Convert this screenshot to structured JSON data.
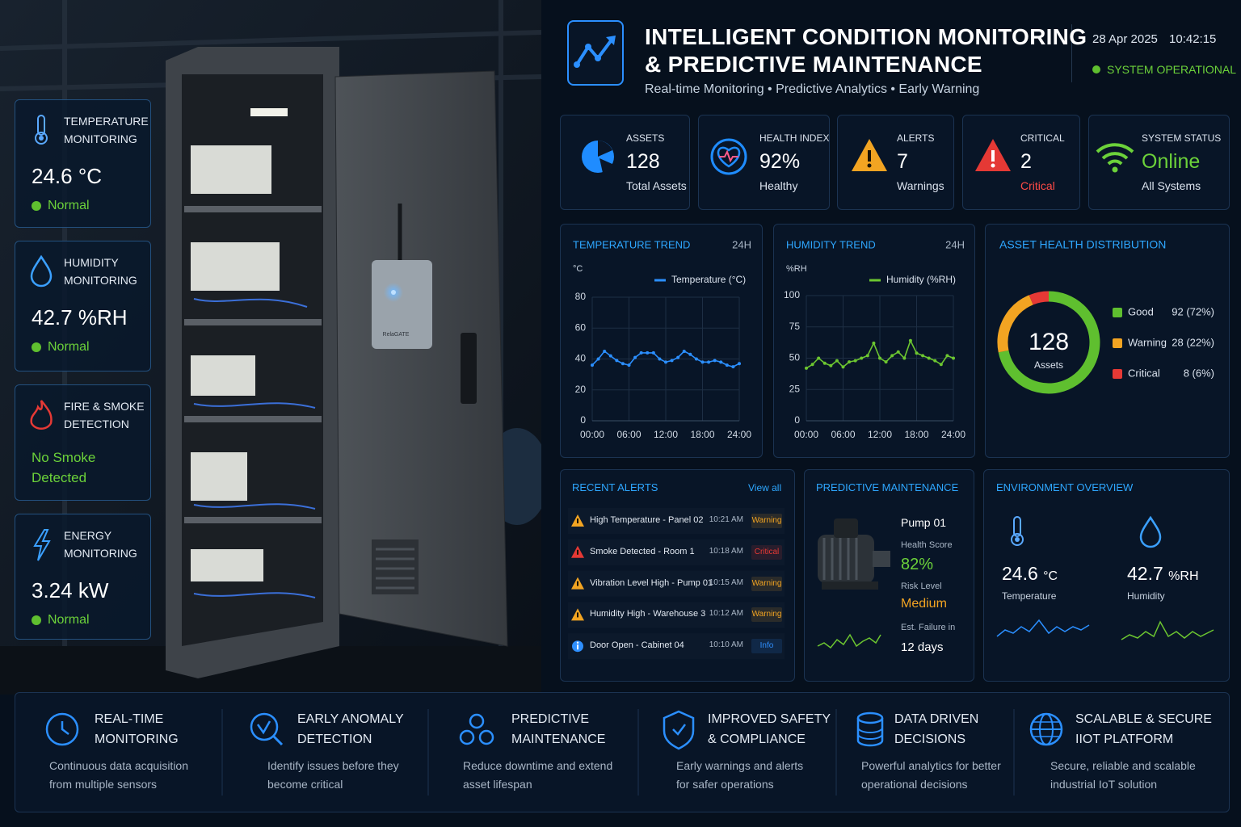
{
  "header": {
    "title_lines": [
      "INTELLIGENT CONDITION MONITORING",
      "& PREDICTIVE MAINTENANCE"
    ],
    "subtitle": "Real-time Monitoring • Predictive Analytics • Early Warning",
    "date": "28 Apr 2025",
    "time": "10:42:15",
    "status": "SYSTEM OPERATIONAL"
  },
  "device": {
    "brand": "RelaGATE"
  },
  "side_cards": [
    {
      "title_lines": [
        "TEMPERATURE",
        "MONITORING"
      ],
      "value": 24.6,
      "unit": "°C",
      "status": "Normal"
    },
    {
      "title_lines": [
        "HUMIDITY",
        "MONITORING"
      ],
      "value": 42.7,
      "unit": "%RH",
      "status": "Normal"
    },
    {
      "title_lines": [
        "FIRE & SMOKE",
        "DETECTION"
      ],
      "status": "No Smoke Detected"
    },
    {
      "title_lines": [
        "ENERGY",
        "MONITORING"
      ],
      "value": 3.24,
      "unit": "kW",
      "status": "Normal"
    }
  ],
  "kpis": [
    {
      "label": "ASSETS",
      "value": 128,
      "caption": "Total Assets"
    },
    {
      "label": "HEALTH INDEX",
      "value": 92,
      "unit": "%",
      "caption": "Healthy"
    },
    {
      "label": "ALERTS",
      "value": 7,
      "caption": "Warnings"
    },
    {
      "label": "CRITICAL",
      "value": 2,
      "caption": "Critical"
    },
    {
      "label": "SYSTEM STATUS",
      "value": "Online",
      "caption": "All Systems"
    }
  ],
  "temperature_trend": {
    "type": "line",
    "title": "TEMPERATURE TREND",
    "range": "24H",
    "y_label": "°C",
    "x": [
      0,
      1,
      2,
      3,
      4,
      5,
      6,
      7,
      8,
      9,
      10,
      11,
      12,
      13,
      14,
      15,
      16,
      17,
      18,
      19,
      20,
      21,
      22,
      23,
      24
    ],
    "series": [
      {
        "name": "Temperature (°C)",
        "color": "#2b8fff",
        "values": [
          36,
          40,
          45,
          42,
          39,
          37,
          36,
          41,
          44,
          44,
          44,
          40,
          38,
          39,
          41,
          45,
          43,
          40,
          38,
          38,
          39,
          38,
          36,
          35,
          37
        ]
      }
    ],
    "xlim": [
      0,
      24
    ],
    "xticks": [
      {
        "value": 0,
        "label": "00:00"
      },
      {
        "value": 6,
        "label": "06:00"
      },
      {
        "value": 12,
        "label": "12:00"
      },
      {
        "value": 18,
        "label": "18:00"
      },
      {
        "value": 24,
        "label": "24:00"
      }
    ],
    "ylim": [
      0,
      80
    ],
    "yticks": [
      0,
      20,
      40,
      60,
      80
    ],
    "grid": true
  },
  "humidity_trend": {
    "type": "line",
    "title": "HUMIDITY TREND",
    "range": "24H",
    "y_label": "%RH",
    "x": [
      0,
      1,
      2,
      3,
      4,
      5,
      6,
      7,
      8,
      9,
      10,
      11,
      12,
      13,
      14,
      15,
      16,
      17,
      18,
      19,
      20,
      21,
      22,
      23,
      24
    ],
    "series": [
      {
        "name": "Humidity (%RH)",
        "color": "#6cc630",
        "values": [
          42,
          45,
          50,
          46,
          44,
          48,
          43,
          47,
          48,
          50,
          52,
          62,
          50,
          47,
          52,
          55,
          50,
          64,
          54,
          52,
          50,
          48,
          45,
          52,
          50
        ]
      }
    ],
    "xlim": [
      0,
      24
    ],
    "xticks": [
      {
        "value": 0,
        "label": "00:00"
      },
      {
        "value": 6,
        "label": "06:00"
      },
      {
        "value": 12,
        "label": "12:00"
      },
      {
        "value": 18,
        "label": "18:00"
      },
      {
        "value": 24,
        "label": "24:00"
      }
    ],
    "ylim": [
      0,
      100
    ],
    "yticks": [
      0,
      25,
      50,
      75,
      100
    ],
    "grid": true
  },
  "asset_health": {
    "type": "donut",
    "title": "ASSET HEALTH DISTRIBUTION",
    "total": 128,
    "total_label": "Assets",
    "categories": [
      "Good",
      "Warning",
      "Critical"
    ],
    "values": [
      92,
      28,
      8
    ],
    "value_labels": [
      "92 (72%)",
      "28 (22%)",
      "8 (6%)"
    ],
    "colors": [
      "#5fbf2f",
      "#f2a422",
      "#e53935"
    ]
  },
  "recent_alerts": {
    "title": "RECENT ALERTS",
    "link": "View all",
    "items": [
      {
        "text": "High Temperature - Panel 02",
        "time": "10:21 AM",
        "level": "Warning"
      },
      {
        "text": "Smoke Detected - Room 1",
        "time": "10:18 AM",
        "level": "Critical"
      },
      {
        "text": "Vibration Level High - Pump 01",
        "time": "10:15 AM",
        "level": "Warning"
      },
      {
        "text": "Humidity High - Warehouse 3",
        "time": "10:12 AM",
        "level": "Warning"
      },
      {
        "text": "Door Open - Cabinet 04",
        "time": "10:10 AM",
        "level": "Info"
      }
    ]
  },
  "predictive": {
    "title": "PREDICTIVE MAINTENANCE",
    "asset": "Pump 01",
    "health_label": "Health Score",
    "health": 82,
    "health_unit": "%",
    "risk_label": "Risk Level",
    "risk": "Medium",
    "failure_label": "Est. Failure in",
    "failure_days": 12,
    "failure_unit": "days"
  },
  "environment": {
    "title": "ENVIRONMENT OVERVIEW",
    "temperature": {
      "value": 24.6,
      "unit": "°C",
      "label": "Temperature"
    },
    "humidity": {
      "value": 42.7,
      "unit": "%RH",
      "label": "Humidity"
    }
  },
  "features": [
    {
      "title_lines": [
        "REAL-TIME",
        "MONITORING"
      ],
      "desc_lines": [
        "Continuous data acquisition",
        "from multiple sensors"
      ]
    },
    {
      "title_lines": [
        "EARLY ANOMALY",
        "DETECTION"
      ],
      "desc_lines": [
        "Identify issues before they",
        "become critical"
      ]
    },
    {
      "title_lines": [
        "PREDICTIVE",
        "MAINTENANCE"
      ],
      "desc_lines": [
        "Reduce downtime and extend",
        "asset lifespan"
      ]
    },
    {
      "title_lines": [
        "IMPROVED SAFETY",
        "& COMPLIANCE"
      ],
      "desc_lines": [
        "Early warnings and alerts",
        "for safer operations"
      ]
    },
    {
      "title_lines": [
        "DATA DRIVEN",
        "DECISIONS"
      ],
      "desc_lines": [
        "Powerful analytics for better",
        "operational decisions"
      ]
    },
    {
      "title_lines": [
        "SCALABLE & SECURE",
        "IIOT PLATFORM"
      ],
      "desc_lines": [
        "Secure, reliable and scalable",
        "industrial IoT solution"
      ]
    }
  ]
}
